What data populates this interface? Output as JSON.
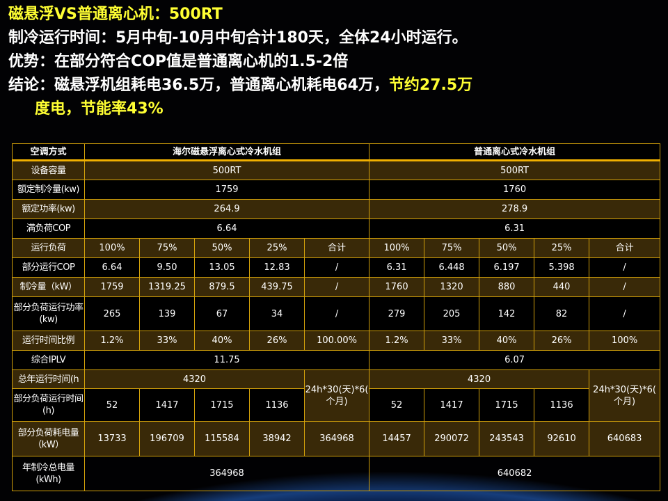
{
  "slide": {
    "title": "磁悬浮VS普通离心机：500RT",
    "line2": "制冷运行时间：5月中旬-10月中旬合计180天，全体24小时运行。",
    "line3": "优势：在部分符合COP值是普通离心机的1.5-2倍",
    "line4_prefix": "结论：磁悬浮机组耗电36.5万，普通离心机耗电64万，",
    "line4_highlight": "节约27.5万",
    "line5_highlight_a": "度电，",
    "line5_highlight_b": "节能率43%"
  },
  "table": {
    "header": [
      "空调方式",
      "海尔磁悬浮离心式冷水机组",
      "普通离心式冷水机组"
    ],
    "capacity": {
      "label": "设备容量",
      "a": "500RT",
      "b": "500RT"
    },
    "rated_cooling": {
      "label": "额定制冷量(kw)",
      "a": "1759",
      "b": "1760"
    },
    "rated_power": {
      "label": "额定功率(kw)",
      "a": "264.9",
      "b": "278.9"
    },
    "full_cop": {
      "label": "满负荷COP",
      "a": "6.64",
      "b": "6.31"
    },
    "rows": [
      {
        "label": "运行负荷",
        "a": [
          "100%",
          "75%",
          "50%",
          "25%",
          "合计"
        ],
        "b": [
          "100%",
          "75%",
          "50%",
          "25%",
          "合计"
        ]
      },
      {
        "label": "部分运行COP",
        "a": [
          "6.64",
          "9.50",
          "13.05",
          "12.83",
          "/"
        ],
        "b": [
          "6.31",
          "6.448",
          "6.197",
          "5.398",
          "/"
        ]
      },
      {
        "label": "制冷量（kW）",
        "a": [
          "1759",
          "1319.25",
          "879.5",
          "439.75",
          "/"
        ],
        "b": [
          "1760",
          "1320",
          "880",
          "440",
          "/"
        ]
      },
      {
        "label": "部分负荷运行功率(kw)",
        "a": [
          "265",
          "139",
          "67",
          "34",
          "/"
        ],
        "b": [
          "279",
          "205",
          "142",
          "82",
          "/"
        ]
      },
      {
        "label": "运行时间比例",
        "a": [
          "1.2%",
          "33%",
          "40%",
          "26%",
          "100.00%"
        ],
        "b": [
          "1.2%",
          "33%",
          "40%",
          "26%",
          "100%"
        ]
      }
    ],
    "iplv": {
      "label": "综合IPLV",
      "a": "11.75",
      "b": "6.07"
    },
    "annual_hours": {
      "label": "总年运行时间(h",
      "a": "4320",
      "b": "4320",
      "note_a": "24h*30(天)*6(个月)",
      "note_b": "24h*30(天)*6(个月)"
    },
    "part_hours": {
      "label": "部分负荷运行时间(h)",
      "a": [
        "52",
        "1417",
        "1715",
        "1136"
      ],
      "b": [
        "52",
        "1417",
        "1715",
        "1136"
      ]
    },
    "part_energy": {
      "label": "部分负荷耗电量（kW）",
      "a": [
        "13733",
        "196709",
        "115584",
        "38942",
        "364968"
      ],
      "b": [
        "14457",
        "290072",
        "243543",
        "92610",
        "640683"
      ]
    },
    "annual_total": {
      "label": "年制冷总电量(kWh)",
      "a": "364968",
      "b": "640682"
    }
  }
}
